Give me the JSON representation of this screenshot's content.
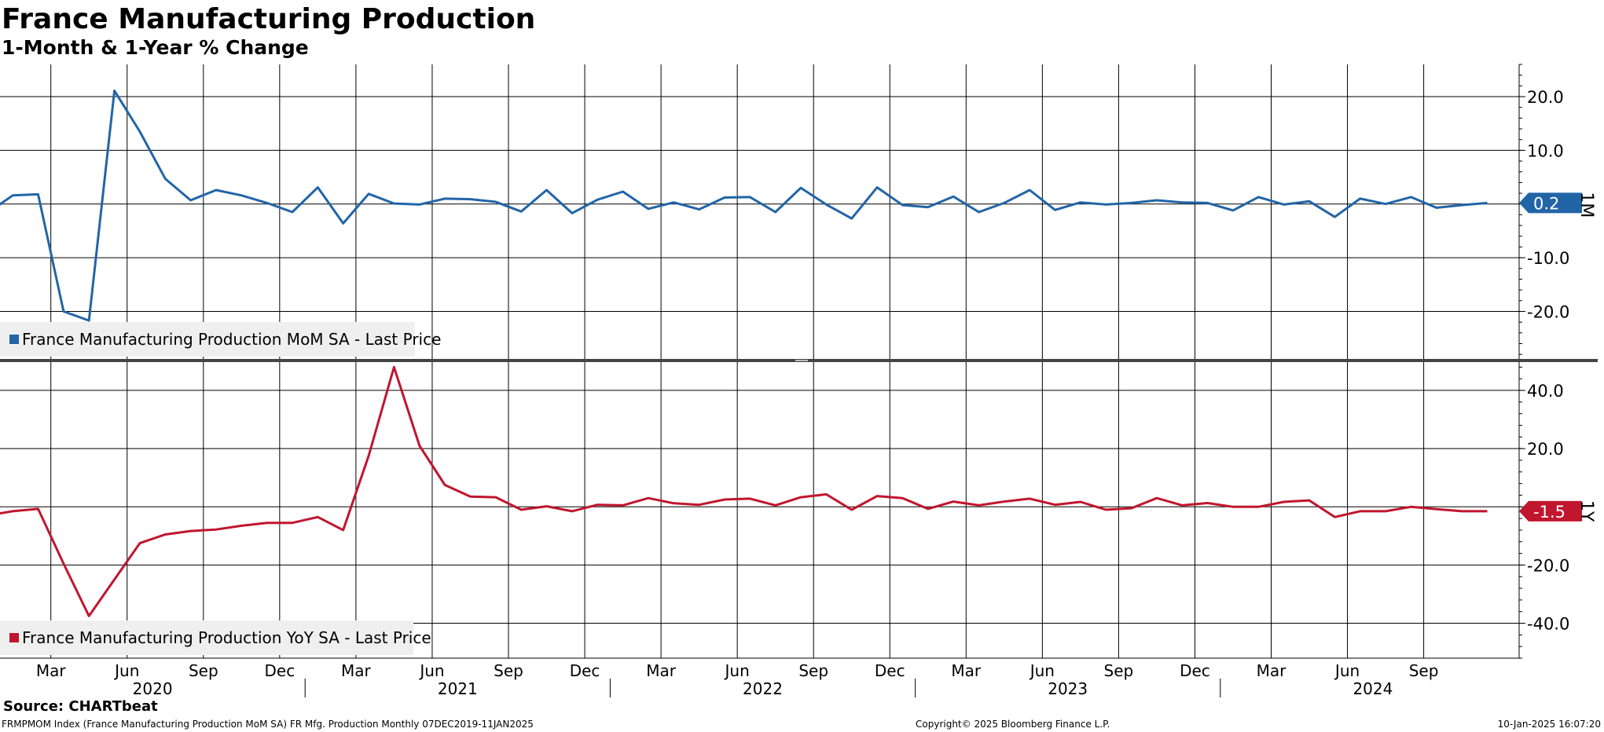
{
  "title": "France Manufacturing Production",
  "subtitle": "1-Month & 1-Year % Change",
  "source": "Source: CHARTbeat",
  "footer": {
    "index_text": "FRMPMOM Index (France Manufacturing Production MoM SA) FR Mfg. Production  Monthly 07DEC2019-11JAN2025",
    "copyright": "Copyright© 2025 Bloomberg Finance L.P.",
    "timestamp": "10-Jan-2025 16:07:20"
  },
  "colors": {
    "mom": "#2265a7",
    "yoy": "#c0162e",
    "grid": "#000000"
  },
  "chart_data": [
    {
      "type": "line",
      "panel_label": "1M",
      "legend": "France Manufacturing Production MoM SA - Last Price",
      "last_value_label": "0.2",
      "yticks": [
        20.0,
        10.0,
        0,
        -10.0,
        -20.0
      ],
      "ytick_labels": [
        "20.0",
        "10.0",
        "",
        "-10.0",
        "-20.0"
      ],
      "ylim": [
        -29,
        26
      ],
      "series": [
        {
          "x": [
            "2019-12",
            "2020-01",
            "2020-02",
            "2020-03",
            "2020-04",
            "2020-05",
            "2020-06",
            "2020-07",
            "2020-08",
            "2020-09",
            "2020-10",
            "2020-11",
            "2020-12",
            "2021-01",
            "2021-02",
            "2021-03",
            "2021-04",
            "2021-05",
            "2021-06",
            "2021-07",
            "2021-08",
            "2021-09",
            "2021-10",
            "2021-11",
            "2021-12",
            "2022-01",
            "2022-02",
            "2022-03",
            "2022-04",
            "2022-05",
            "2022-06",
            "2022-07",
            "2022-08",
            "2022-09",
            "2022-10",
            "2022-11",
            "2022-12",
            "2023-01",
            "2023-02",
            "2023-03",
            "2023-04",
            "2023-05",
            "2023-06",
            "2023-07",
            "2023-08",
            "2023-09",
            "2023-10",
            "2023-11",
            "2023-12",
            "2024-01",
            "2024-02",
            "2024-03",
            "2024-04",
            "2024-05",
            "2024-06",
            "2024-07",
            "2024-08",
            "2024-09",
            "2024-10",
            "2024-11"
          ],
          "values": [
            -1.7,
            1.6,
            1.8,
            -20.0,
            -21.7,
            21.1,
            13.5,
            4.7,
            0.7,
            2.6,
            1.6,
            0.2,
            -1.5,
            3.1,
            -3.6,
            1.9,
            0.1,
            -0.1,
            1.0,
            0.9,
            0.4,
            -1.4,
            2.6,
            -1.7,
            0.8,
            2.3,
            -0.9,
            0.3,
            -1.0,
            1.2,
            1.3,
            -1.5,
            3.0,
            -0.1,
            -2.7,
            3.1,
            -0.2,
            -0.6,
            1.4,
            -1.5,
            0.2,
            2.6,
            -1.1,
            0.3,
            -0.1,
            0.2,
            0.7,
            0.3,
            0.2,
            -1.2,
            1.3,
            -0.1,
            0.5,
            -2.4,
            1.0,
            -0.0,
            1.3,
            -0.7,
            -0.2,
            0.2
          ]
        }
      ]
    },
    {
      "type": "line",
      "panel_label": "1Y",
      "legend": "France Manufacturing Production YoY SA - Last Price",
      "last_value_label": "-1.5",
      "yticks": [
        40.0,
        20.0,
        0,
        -20.0,
        -40.0
      ],
      "ytick_labels": [
        "40.0",
        "20.0",
        "",
        "-20.0",
        "-40.0"
      ],
      "ylim": [
        -52,
        50
      ],
      "series": [
        {
          "x": [
            "2019-12",
            "2020-01",
            "2020-02",
            "2020-03",
            "2020-04",
            "2020-05",
            "2020-06",
            "2020-07",
            "2020-08",
            "2020-09",
            "2020-10",
            "2020-11",
            "2020-12",
            "2021-01",
            "2021-02",
            "2021-03",
            "2021-04",
            "2021-05",
            "2021-06",
            "2021-07",
            "2021-08",
            "2021-09",
            "2021-10",
            "2021-11",
            "2021-12",
            "2022-01",
            "2022-02",
            "2022-03",
            "2022-04",
            "2022-05",
            "2022-06",
            "2022-07",
            "2022-08",
            "2022-09",
            "2022-10",
            "2022-11",
            "2022-12",
            "2023-01",
            "2023-02",
            "2023-03",
            "2023-04",
            "2023-05",
            "2023-06",
            "2023-07",
            "2023-08",
            "2023-09",
            "2023-10",
            "2023-11",
            "2023-12",
            "2024-01",
            "2024-02",
            "2024-03",
            "2024-04",
            "2024-05",
            "2024-06",
            "2024-07",
            "2024-08",
            "2024-09",
            "2024-10",
            "2024-11"
          ],
          "values": [
            -3.0,
            -1.5,
            -0.7,
            -19.5,
            -37.5,
            -25.0,
            -12.5,
            -9.5,
            -8.3,
            -7.8,
            -6.5,
            -5.5,
            -5.5,
            -3.5,
            -8.0,
            17.5,
            48.0,
            21.0,
            7.5,
            3.5,
            3.3,
            -1.0,
            0.2,
            -1.5,
            0.7,
            0.5,
            3.0,
            1.2,
            0.7,
            2.5,
            2.8,
            0.5,
            3.3,
            4.3,
            -1.0,
            3.7,
            3.0,
            -0.7,
            1.8,
            0.5,
            1.8,
            2.8,
            0.7,
            1.7,
            -1.0,
            -0.5,
            3.0,
            0.5,
            1.3,
            0.0,
            0.0,
            1.7,
            2.2,
            -3.5,
            -1.5,
            -1.5,
            0.0,
            -0.8,
            -1.5,
            -1.5
          ]
        }
      ]
    }
  ],
  "x_axis": {
    "month_labels": [
      "Mar",
      "Jun",
      "Sep",
      "Dec",
      "Mar",
      "Jun",
      "Sep",
      "Dec",
      "Mar",
      "Jun",
      "Sep",
      "Dec",
      "Mar",
      "Jun",
      "Sep",
      "Dec",
      "Mar",
      "Jun",
      "Sep"
    ],
    "month_dates": [
      "2020-03",
      "2020-06",
      "2020-09",
      "2020-12",
      "2021-03",
      "2021-06",
      "2021-09",
      "2021-12",
      "2022-03",
      "2022-06",
      "2022-09",
      "2022-12",
      "2023-03",
      "2023-06",
      "2023-09",
      "2023-12",
      "2024-03",
      "2024-06",
      "2024-09"
    ],
    "year_labels": [
      "2020",
      "2021",
      "2022",
      "2023",
      "2024"
    ]
  }
}
